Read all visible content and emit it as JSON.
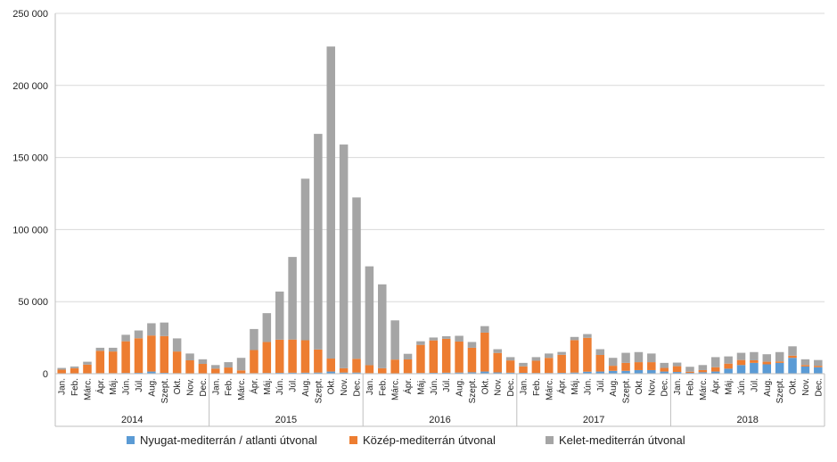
{
  "chart_data": {
    "type": "bar",
    "stacked": true,
    "y_ticks": [
      "0",
      "50 000",
      "100 000",
      "150 000",
      "200 000",
      "250 000"
    ],
    "ylim": [
      0,
      250000
    ],
    "grid": true,
    "legend_placement": "bottom",
    "month_labels": [
      "Jan.",
      "Feb.",
      "Márc.",
      "Ápr.",
      "Máj.",
      "Jún.",
      "Júl.",
      "Aug.",
      "Szept.",
      "Okt.",
      "Nov.",
      "Dec."
    ],
    "years": [
      "2014",
      "2015",
      "2016",
      "2017",
      "2018"
    ],
    "series": [
      {
        "name": "Nyugat-mediterrán / atlanti útvonal",
        "color": "#5b9bd5",
        "values": [
          300,
          300,
          300,
          400,
          400,
          500,
          600,
          1500,
          600,
          400,
          300,
          300,
          300,
          300,
          300,
          400,
          500,
          600,
          700,
          700,
          800,
          1500,
          800,
          800,
          400,
          300,
          300,
          400,
          500,
          600,
          700,
          800,
          1000,
          1500,
          900,
          700,
          600,
          500,
          500,
          600,
          800,
          1400,
          1500,
          2000,
          2000,
          2500,
          2500,
          1500,
          1200,
          600,
          1000,
          1500,
          3500,
          6000,
          7500,
          6500,
          7500,
          11000,
          5000,
          4500
        ]
      },
      {
        "name": "Közép-mediterrán útvonal",
        "color": "#ed7d31",
        "values": [
          2500,
          3500,
          6000,
          15500,
          15000,
          22000,
          24000,
          25000,
          25500,
          15000,
          9000,
          6500,
          3200,
          4000,
          2000,
          16000,
          21500,
          23000,
          23000,
          22500,
          16000,
          9000,
          3000,
          9500,
          5500,
          3500,
          9500,
          9500,
          19500,
          22500,
          23500,
          21500,
          17000,
          27000,
          13500,
          8500,
          4500,
          8500,
          10500,
          12500,
          22500,
          23500,
          11500,
          3500,
          5500,
          5500,
          5500,
          2500,
          4000,
          800,
          1500,
          3000,
          3500,
          3500,
          1800,
          1800,
          1000,
          1500,
          1000,
          1000
        ]
      },
      {
        "name": "Kelet-mediterrán útvonal",
        "color": "#a5a5a5",
        "values": [
          1200,
          1200,
          2000,
          2100,
          2600,
          4500,
          5400,
          8500,
          9400,
          9100,
          4700,
          3200,
          2500,
          3700,
          8700,
          14600,
          20000,
          33400,
          57300,
          112100,
          149600,
          216500,
          155200,
          112000,
          68600,
          58200,
          27200,
          3900,
          2500,
          2000,
          1800,
          4000,
          4000,
          4500,
          2600,
          2300,
          2400,
          2500,
          3000,
          2000,
          2200,
          2600,
          4000,
          5500,
          7000,
          7000,
          6000,
          3500,
          2500,
          3400,
          3500,
          7000,
          5000,
          5000,
          5700,
          5200,
          6500,
          6500,
          4000,
          4000
        ]
      }
    ]
  }
}
